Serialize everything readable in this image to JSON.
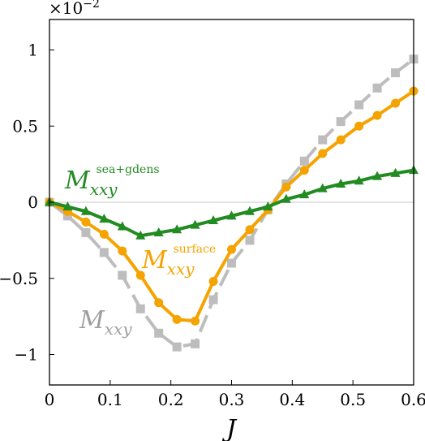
{
  "chart_data": {
    "type": "line",
    "title": "",
    "xlabel": "J",
    "ylabel": "",
    "xlim": [
      0,
      0.6
    ],
    "ylim": [
      -1.2,
      1.2
    ],
    "y_multiplier": {
      "base": "×10",
      "exponent": "−2"
    },
    "xticks": [
      {
        "value": 0,
        "label": "0"
      },
      {
        "value": 0.1,
        "label": "0.1"
      },
      {
        "value": 0.2,
        "label": "0.2"
      },
      {
        "value": 0.3,
        "label": "0.3"
      },
      {
        "value": 0.4,
        "label": "0.4"
      },
      {
        "value": 0.5,
        "label": "0.5"
      },
      {
        "value": 0.6,
        "label": "0.6"
      }
    ],
    "yticks": [
      {
        "value": 1,
        "label": "1"
      },
      {
        "value": 0.5,
        "label": "0.5"
      },
      {
        "value": 0,
        "label": "0"
      },
      {
        "value": -0.5,
        "label": "−0.5"
      },
      {
        "value": -1,
        "label": "−1"
      }
    ],
    "grid": false,
    "x": [
      0,
      0.03,
      0.06,
      0.09,
      0.12,
      0.15,
      0.18,
      0.21,
      0.24,
      0.27,
      0.3,
      0.33,
      0.36,
      0.39,
      0.42,
      0.45,
      0.48,
      0.51,
      0.54,
      0.57,
      0.6
    ],
    "series": [
      {
        "id": "total",
        "color": "#bdbdbd",
        "marker": "square",
        "dashed": true,
        "annotation": {
          "main": "M",
          "sub": "xxy",
          "sup": ""
        },
        "values": [
          0,
          -0.09,
          -0.2,
          -0.33,
          -0.48,
          -0.7,
          -0.86,
          -0.95,
          -0.93,
          -0.64,
          -0.4,
          -0.25,
          -0.05,
          0.12,
          0.27,
          0.41,
          0.53,
          0.64,
          0.75,
          0.85,
          0.94
        ]
      },
      {
        "id": "surface",
        "color": "#f5a300",
        "marker": "circle",
        "dashed": false,
        "annotation": {
          "main": "M",
          "sub": "xxy",
          "sup": "surface"
        },
        "values": [
          0,
          -0.06,
          -0.13,
          -0.21,
          -0.32,
          -0.48,
          -0.66,
          -0.77,
          -0.78,
          -0.52,
          -0.31,
          -0.18,
          -0.05,
          0.1,
          0.21,
          0.32,
          0.41,
          0.5,
          0.57,
          0.65,
          0.73
        ]
      },
      {
        "id": "sea_gdens",
        "color": "#228b22",
        "marker": "triangle",
        "dashed": false,
        "annotation": {
          "main": "M",
          "sub": "xxy",
          "sup": "sea+gdens"
        },
        "values": [
          0,
          -0.03,
          -0.06,
          -0.11,
          -0.16,
          -0.22,
          -0.2,
          -0.18,
          -0.15,
          -0.12,
          -0.09,
          -0.06,
          -0.03,
          0.02,
          0.05,
          0.09,
          0.12,
          0.14,
          0.17,
          0.19,
          0.21
        ]
      }
    ]
  }
}
